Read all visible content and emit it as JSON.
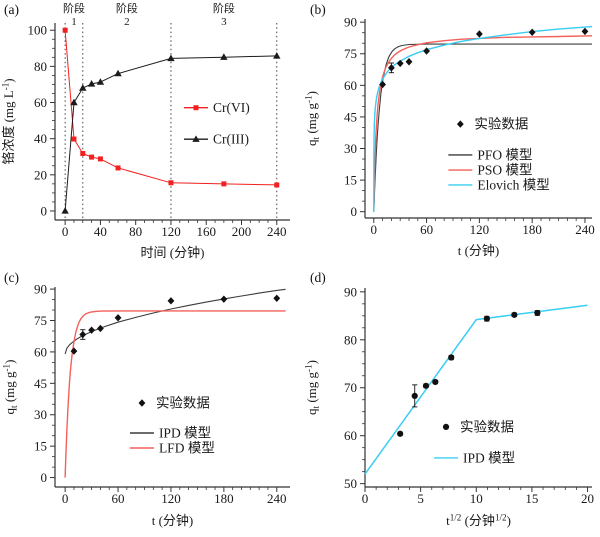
{
  "page": {
    "background": "#ffffff"
  },
  "colors": {
    "red_data": "#f32020",
    "red_model": "#f4605a",
    "cyan_model": "#38cdf2",
    "black_model": "#3c3c3c",
    "black_data": "#111111",
    "axis": "#333333",
    "divider": "#444444"
  },
  "chart_data": [
    {
      "id": "a",
      "type": "line",
      "panel_label": "(a)",
      "xlabel": [
        [
          "n",
          "时间 (分钟)"
        ]
      ],
      "ylabel": [
        [
          "n",
          "铬浓度 (mg L"
        ],
        [
          "sup",
          "-1"
        ],
        [
          "n",
          ")"
        ]
      ],
      "xlim": [
        -11.5,
        255
      ],
      "ylim": [
        -5,
        104
      ],
      "xticks": [
        0,
        40,
        80,
        120,
        160,
        200,
        240
      ],
      "yticks": [
        0,
        20,
        40,
        60,
        80,
        100
      ],
      "xminor": 10,
      "yminor": 5,
      "rules": {
        "x": [
          0,
          20,
          120,
          240
        ]
      },
      "annotations": [
        {
          "x": 10,
          "lines": [
            "阶段",
            "1"
          ]
        },
        {
          "x": 70,
          "lines": [
            "阶段",
            "2"
          ]
        },
        {
          "x": 180,
          "lines": [
            "阶段",
            "3"
          ]
        }
      ],
      "series": [
        {
          "key": "crvi",
          "name": "Cr(VI)",
          "color": "#f32020",
          "marker": "square",
          "line": true,
          "x": [
            0,
            10,
            20,
            30,
            40,
            60,
            120,
            180,
            240
          ],
          "y": [
            100,
            39.8,
            31.8,
            29.8,
            28.8,
            23.8,
            15.6,
            15.0,
            14.4
          ]
        },
        {
          "key": "criii",
          "name": "Cr(III)",
          "color": "#1c1c1c",
          "marker": "triangle",
          "line": true,
          "x": [
            0,
            10,
            20,
            30,
            40,
            60,
            120,
            180,
            240
          ],
          "y": [
            0,
            60,
            68,
            70.3,
            71.3,
            76,
            84.4,
            85.1,
            85.8
          ]
        }
      ],
      "legend": [
        {
          "fx": 0.6,
          "fy": 0.43,
          "swatch": "line+marker",
          "marker": "square",
          "color": "#f32020",
          "label": "Cr(VI)"
        },
        {
          "fx": 0.6,
          "fy": 0.59,
          "swatch": "line+marker",
          "marker": "triangle",
          "color": "#1c1c1c",
          "label": "Cr(III)"
        }
      ]
    },
    {
      "id": "b",
      "type": "line",
      "panel_label": "(b)",
      "xlabel": [
        [
          "n",
          "t (分钟)"
        ]
      ],
      "ylabel": [
        [
          "n",
          "q"
        ],
        [
          "sub",
          "t"
        ],
        [
          "n",
          " (mg g"
        ],
        [
          "sup",
          "-1"
        ],
        [
          "n",
          ")"
        ]
      ],
      "xlim": [
        -10,
        248
      ],
      "ylim": [
        -3,
        91.5
      ],
      "xticks": [
        0,
        60,
        120,
        180,
        240
      ],
      "yticks": [
        0,
        15,
        30,
        45,
        60,
        75,
        90
      ],
      "xminor": 10,
      "yminor": 5,
      "series": [
        {
          "key": "pfo",
          "name": "PFO 模型",
          "color": "#3c3c3c",
          "line": true,
          "lw": 1.1,
          "pts": [
            [
              0,
              0
            ],
            [
              1,
              11.1
            ],
            [
              2,
              20.6
            ],
            [
              3,
              28.7
            ],
            [
              4,
              35.9
            ],
            [
              5,
              42
            ],
            [
              6,
              47.2
            ],
            [
              8,
              55.6
            ],
            [
              10,
              61.9
            ],
            [
              12,
              66.3
            ],
            [
              14,
              69.8
            ],
            [
              16,
              72.3
            ],
            [
              18,
              74.2
            ],
            [
              21,
              76.2
            ],
            [
              24,
              77.4
            ],
            [
              28,
              78.4
            ],
            [
              32,
              78.9
            ],
            [
              40,
              79.4
            ],
            [
              50,
              79.5
            ],
            [
              60,
              79.6
            ],
            [
              100,
              79.6
            ],
            [
              150,
              79.6
            ],
            [
              200,
              79.6
            ],
            [
              248,
              79.6
            ]
          ]
        },
        {
          "key": "pso",
          "name": "PSO 模型",
          "color": "#f4605a",
          "line": true,
          "lw": 1.4,
          "pts": [
            [
              0,
              0
            ],
            [
              1,
              20.2
            ],
            [
              2,
              32.5
            ],
            [
              3,
              40.7
            ],
            [
              4,
              47
            ],
            [
              5,
              51.5
            ],
            [
              6,
              55.1
            ],
            [
              8,
              60.4
            ],
            [
              10,
              64
            ],
            [
              12,
              66.7
            ],
            [
              14,
              68.8
            ],
            [
              16,
              70.4
            ],
            [
              18,
              71.7
            ],
            [
              21,
              73.3
            ],
            [
              24,
              74.6
            ],
            [
              28,
              75.8
            ],
            [
              32,
              76.8
            ],
            [
              40,
              78.2
            ],
            [
              50,
              79.3
            ],
            [
              60,
              80.2
            ],
            [
              80,
              81.2
            ],
            [
              100,
              81.9
            ],
            [
              120,
              82.3
            ],
            [
              150,
              82.8
            ],
            [
              180,
              83
            ],
            [
              210,
              83.2
            ],
            [
              248,
              83.5
            ]
          ]
        },
        {
          "key": "elovich",
          "name": "Elovich 模型",
          "color": "#38cdf2",
          "line": true,
          "lw": 1.4,
          "pts": [
            [
              0,
              0
            ],
            [
              0.1,
              27.5
            ],
            [
              0.3,
              35.8
            ],
            [
              0.6,
              41.2
            ],
            [
              1,
              45.1
            ],
            [
              1.5,
              48.3
            ],
            [
              2,
              50.5
            ],
            [
              3,
              53.6
            ],
            [
              4,
              55.9
            ],
            [
              5,
              57.6
            ],
            [
              6,
              59.1
            ],
            [
              8,
              61.3
            ],
            [
              10,
              63
            ],
            [
              12,
              64.4
            ],
            [
              14,
              65.6
            ],
            [
              16,
              66.7
            ],
            [
              18,
              67.6
            ],
            [
              21,
              68.8
            ],
            [
              24,
              69.8
            ],
            [
              28,
              71
            ],
            [
              32,
              72
            ],
            [
              40,
              73.8
            ],
            [
              50,
              75.5
            ],
            [
              60,
              76.9
            ],
            [
              80,
              79.1
            ],
            [
              100,
              80.9
            ],
            [
              120,
              82.3
            ],
            [
              150,
              84
            ],
            [
              180,
              85.5
            ],
            [
              210,
              86.7
            ],
            [
              248,
              87.9
            ]
          ]
        },
        {
          "key": "exp",
          "name": "实验数据",
          "color": "#111111",
          "marker": "diamond",
          "line": false,
          "x": [
            10,
            20,
            30,
            40,
            60,
            120,
            180,
            240
          ],
          "y": [
            60.4,
            68.3,
            70.4,
            71.2,
            76.3,
            84.4,
            85.2,
            85.6
          ],
          "errs": [
            0,
            2.3,
            0,
            0,
            0,
            0,
            0,
            0
          ]
        }
      ],
      "legend": [
        {
          "fx": 0.42,
          "fy": 0.528,
          "swatch": "marker",
          "marker": "diamond",
          "color": "#111111",
          "label": "实验数据"
        },
        {
          "fx": 0.42,
          "fy": 0.683,
          "swatch": "line",
          "color": "#3c3c3c",
          "label": "PFO 模型"
        },
        {
          "fx": 0.42,
          "fy": 0.759,
          "swatch": "line",
          "color": "#f4605a",
          "label": "PSO 模型"
        },
        {
          "fx": 0.42,
          "fy": 0.834,
          "swatch": "line",
          "color": "#38cdf2",
          "label": "Elovich 模型"
        }
      ]
    },
    {
      "id": "c",
      "type": "line",
      "panel_label": "(c)",
      "xlabel": [
        [
          "n",
          "t (分钟)"
        ]
      ],
      "ylabel": [
        [
          "n",
          "q"
        ],
        [
          "sub",
          "t"
        ],
        [
          "n",
          " (mg g"
        ],
        [
          "sup",
          "-1"
        ],
        [
          "n",
          ")"
        ]
      ],
      "xlim": [
        -11.5,
        255
      ],
      "ylim": [
        -4.5,
        91
      ],
      "xticks": [
        0,
        60,
        120,
        180,
        240
      ],
      "yticks": [
        0,
        15,
        30,
        45,
        60,
        75,
        90
      ],
      "xminor": 10,
      "yminor": 5,
      "series": [
        {
          "key": "ipd",
          "name": "IPD 模型",
          "color": "#3c3c3c",
          "line": true,
          "lw": 1.1,
          "pts": [
            [
              0,
              59
            ],
            [
              2,
              61.8
            ],
            [
              5,
              63.4
            ],
            [
              10,
              65.2
            ],
            [
              15,
              66.6
            ],
            [
              20,
              67.8
            ],
            [
              30,
              69.7
            ],
            [
              40,
              71.4
            ],
            [
              60,
              74.2
            ],
            [
              80,
              76.5
            ],
            [
              100,
              78.6
            ],
            [
              120,
              80.5
            ],
            [
              140,
              82.2
            ],
            [
              160,
              83.8
            ],
            [
              180,
              85.3
            ],
            [
              200,
              86.7
            ],
            [
              220,
              88.1
            ],
            [
              240,
              89.4
            ],
            [
              250,
              89.9
            ]
          ]
        },
        {
          "key": "lfd",
          "name": "LFD 模型",
          "color": "#f4605a",
          "line": true,
          "lw": 1.4,
          "pts": [
            [
              0,
              0
            ],
            [
              1,
              12.4
            ],
            [
              2,
              22.9
            ],
            [
              3,
              31.8
            ],
            [
              4,
              39.2
            ],
            [
              5,
              45.5
            ],
            [
              6,
              50.9
            ],
            [
              7,
              55.3
            ],
            [
              8,
              59.1
            ],
            [
              10,
              65
            ],
            [
              12,
              69.2
            ],
            [
              14,
              72.2
            ],
            [
              16,
              74.4
            ],
            [
              18,
              75.9
            ],
            [
              21,
              77.5
            ],
            [
              24,
              78.3
            ],
            [
              28,
              78.9
            ],
            [
              32,
              79.2
            ],
            [
              40,
              79.5
            ],
            [
              60,
              79.6
            ],
            [
              100,
              79.6
            ],
            [
              160,
              79.6
            ],
            [
              220,
              79.6
            ],
            [
              250,
              79.6
            ]
          ]
        },
        {
          "key": "exp",
          "name": "实验数据",
          "color": "#111111",
          "marker": "diamond",
          "line": false,
          "x": [
            10,
            20,
            30,
            40,
            60,
            120,
            180,
            240
          ],
          "y": [
            60.4,
            68.3,
            70.4,
            71.2,
            76.3,
            84.4,
            85.2,
            85.6
          ],
          "errs": [
            0,
            2.3,
            0,
            0,
            0,
            0,
            0,
            0
          ]
        }
      ],
      "legend": [
        {
          "fx": 0.37,
          "fy": 0.58,
          "swatch": "marker",
          "marker": "diamond",
          "color": "#111111",
          "label": "实验数据"
        },
        {
          "fx": 0.37,
          "fy": 0.73,
          "swatch": "line",
          "color": "#3c3c3c",
          "label": "IPD 模型"
        },
        {
          "fx": 0.37,
          "fy": 0.805,
          "swatch": "line",
          "color": "#f4605a",
          "label": "LFD 模型"
        }
      ]
    },
    {
      "id": "d",
      "type": "line",
      "panel_label": "(d)",
      "xlabel": [
        [
          "n",
          "t"
        ],
        [
          "sup",
          "1/2"
        ],
        [
          "n",
          " (分钟"
        ],
        [
          "sup",
          "1/2"
        ],
        [
          "n",
          ")"
        ]
      ],
      "ylabel": [
        [
          "n",
          "q"
        ],
        [
          "sub",
          "t"
        ],
        [
          "n",
          " (mg g"
        ],
        [
          "sup",
          "-1"
        ],
        [
          "n",
          ")"
        ]
      ],
      "xlim": [
        0,
        20.4
      ],
      "ylim": [
        49.3,
        90.8
      ],
      "xticks": [
        0,
        5,
        10,
        15,
        20
      ],
      "yticks": [
        50,
        60,
        70,
        80,
        90
      ],
      "xminor": 1,
      "yminor": 2.5,
      "series": [
        {
          "key": "ipd",
          "name": "IPD 模型",
          "color": "#38cdf2",
          "line": true,
          "lw": 1.5,
          "pts": [
            [
              0,
              52
            ],
            [
              10,
              84.2
            ],
            [
              20,
              87.2
            ]
          ]
        },
        {
          "key": "exp",
          "name": "实验数据",
          "color": "#111111",
          "marker": "circle",
          "line": false,
          "x": [
            3.16,
            4.47,
            5.48,
            6.32,
            7.75,
            10.95,
            13.42,
            15.49
          ],
          "y": [
            60.4,
            68.3,
            70.4,
            71.2,
            76.3,
            84.4,
            85.2,
            85.6
          ],
          "errs": [
            0.3,
            2.3,
            0.35,
            0.3,
            0.45,
            0.5,
            0.35,
            0.5
          ]
        }
      ],
      "legend": [
        {
          "fx": 0.357,
          "fy": 0.698,
          "swatch": "marker",
          "marker": "circle",
          "color": "#111111",
          "label": "实验数据"
        },
        {
          "fx": 0.357,
          "fy": 0.854,
          "swatch": "line",
          "color": "#38cdf2",
          "label": "IPD 模型"
        }
      ]
    }
  ]
}
